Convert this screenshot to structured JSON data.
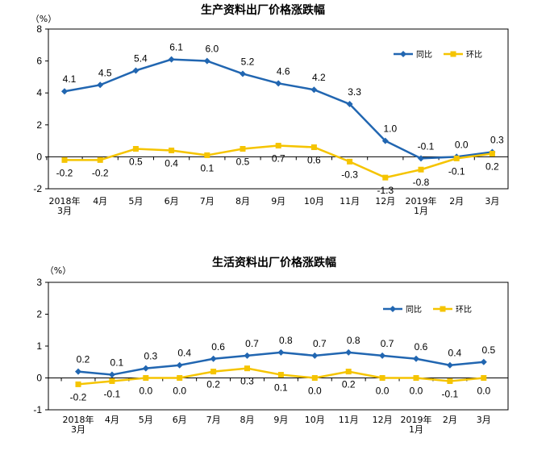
{
  "chart_data": [
    {
      "type": "line",
      "title": "生产资料出厂价格涨跌幅",
      "ylabel": "（%）",
      "categories": [
        [
          "2018年",
          "3月"
        ],
        [
          "4月"
        ],
        [
          "5月"
        ],
        [
          "6月"
        ],
        [
          "7月"
        ],
        [
          "8月"
        ],
        [
          "9月"
        ],
        [
          "10月"
        ],
        [
          "11月"
        ],
        [
          "12月"
        ],
        [
          "2019年",
          "1月"
        ],
        [
          "2月"
        ],
        [
          "3月"
        ]
      ],
      "yticks": [
        "8",
        "6",
        "4",
        "2",
        "0",
        "-2"
      ],
      "ylim": [
        -2,
        8
      ],
      "legend_position": "top-right",
      "series": [
        {
          "name": "同比",
          "color": "#2166b1",
          "marker": "diamond",
          "values": [
            4.1,
            4.5,
            5.4,
            6.1,
            6.0,
            5.2,
            4.6,
            4.2,
            3.3,
            1.0,
            -0.1,
            0.0,
            0.3
          ],
          "labels": [
            "4.1",
            "4.5",
            "5.4",
            "6.1",
            "6.0",
            "5.2",
            "4.6",
            "4.2",
            "3.3",
            "1.0",
            "-0.1",
            "0.0",
            "0.3"
          ]
        },
        {
          "name": "环比",
          "color": "#f5c400",
          "marker": "square",
          "values": [
            -0.2,
            -0.2,
            0.5,
            0.4,
            0.1,
            0.5,
            0.7,
            0.6,
            -0.3,
            -1.3,
            -0.8,
            -0.1,
            0.2
          ],
          "labels": [
            "-0.2",
            "-0.2",
            "0.5",
            "0.4",
            "0.1",
            "0.5",
            "0.7",
            "0.6",
            "-0.3",
            "-1.3",
            "-0.8",
            "-0.1",
            "0.2"
          ]
        }
      ]
    },
    {
      "type": "line",
      "title": "生活资料出厂价格涨跌幅",
      "ylabel": "（%）",
      "categories": [
        [
          "2018年",
          "3月"
        ],
        [
          "4月"
        ],
        [
          "5月"
        ],
        [
          "6月"
        ],
        [
          "7月"
        ],
        [
          "8月"
        ],
        [
          "9月"
        ],
        [
          "10月"
        ],
        [
          "11月"
        ],
        [
          "12月"
        ],
        [
          "2019年",
          "1月"
        ],
        [
          "2月"
        ],
        [
          "3月"
        ]
      ],
      "yticks": [
        "3",
        "2",
        "1",
        "0",
        "-1"
      ],
      "ylim": [
        -1,
        3
      ],
      "legend_position": "top-right",
      "series": [
        {
          "name": "同比",
          "color": "#2166b1",
          "marker": "diamond",
          "values": [
            0.2,
            0.1,
            0.3,
            0.4,
            0.6,
            0.7,
            0.8,
            0.7,
            0.8,
            0.7,
            0.6,
            0.4,
            0.5
          ],
          "labels": [
            "0.2",
            "0.1",
            "0.3",
            "0.4",
            "0.6",
            "0.7",
            "0.8",
            "0.7",
            "0.8",
            "0.7",
            "0.6",
            "0.4",
            "0.5"
          ]
        },
        {
          "name": "环比",
          "color": "#f5c400",
          "marker": "square",
          "values": [
            -0.2,
            -0.1,
            0.0,
            0.0,
            0.2,
            0.3,
            0.1,
            0.0,
            0.2,
            0.0,
            0.0,
            -0.1,
            0.0
          ],
          "labels": [
            "-0.2",
            "-0.1",
            "0.0",
            "0.0",
            "0.2",
            "0.3",
            "0.1",
            "0.0",
            "0.2",
            "0.0",
            "0.0",
            "-0.1",
            "0.0"
          ]
        }
      ]
    }
  ]
}
